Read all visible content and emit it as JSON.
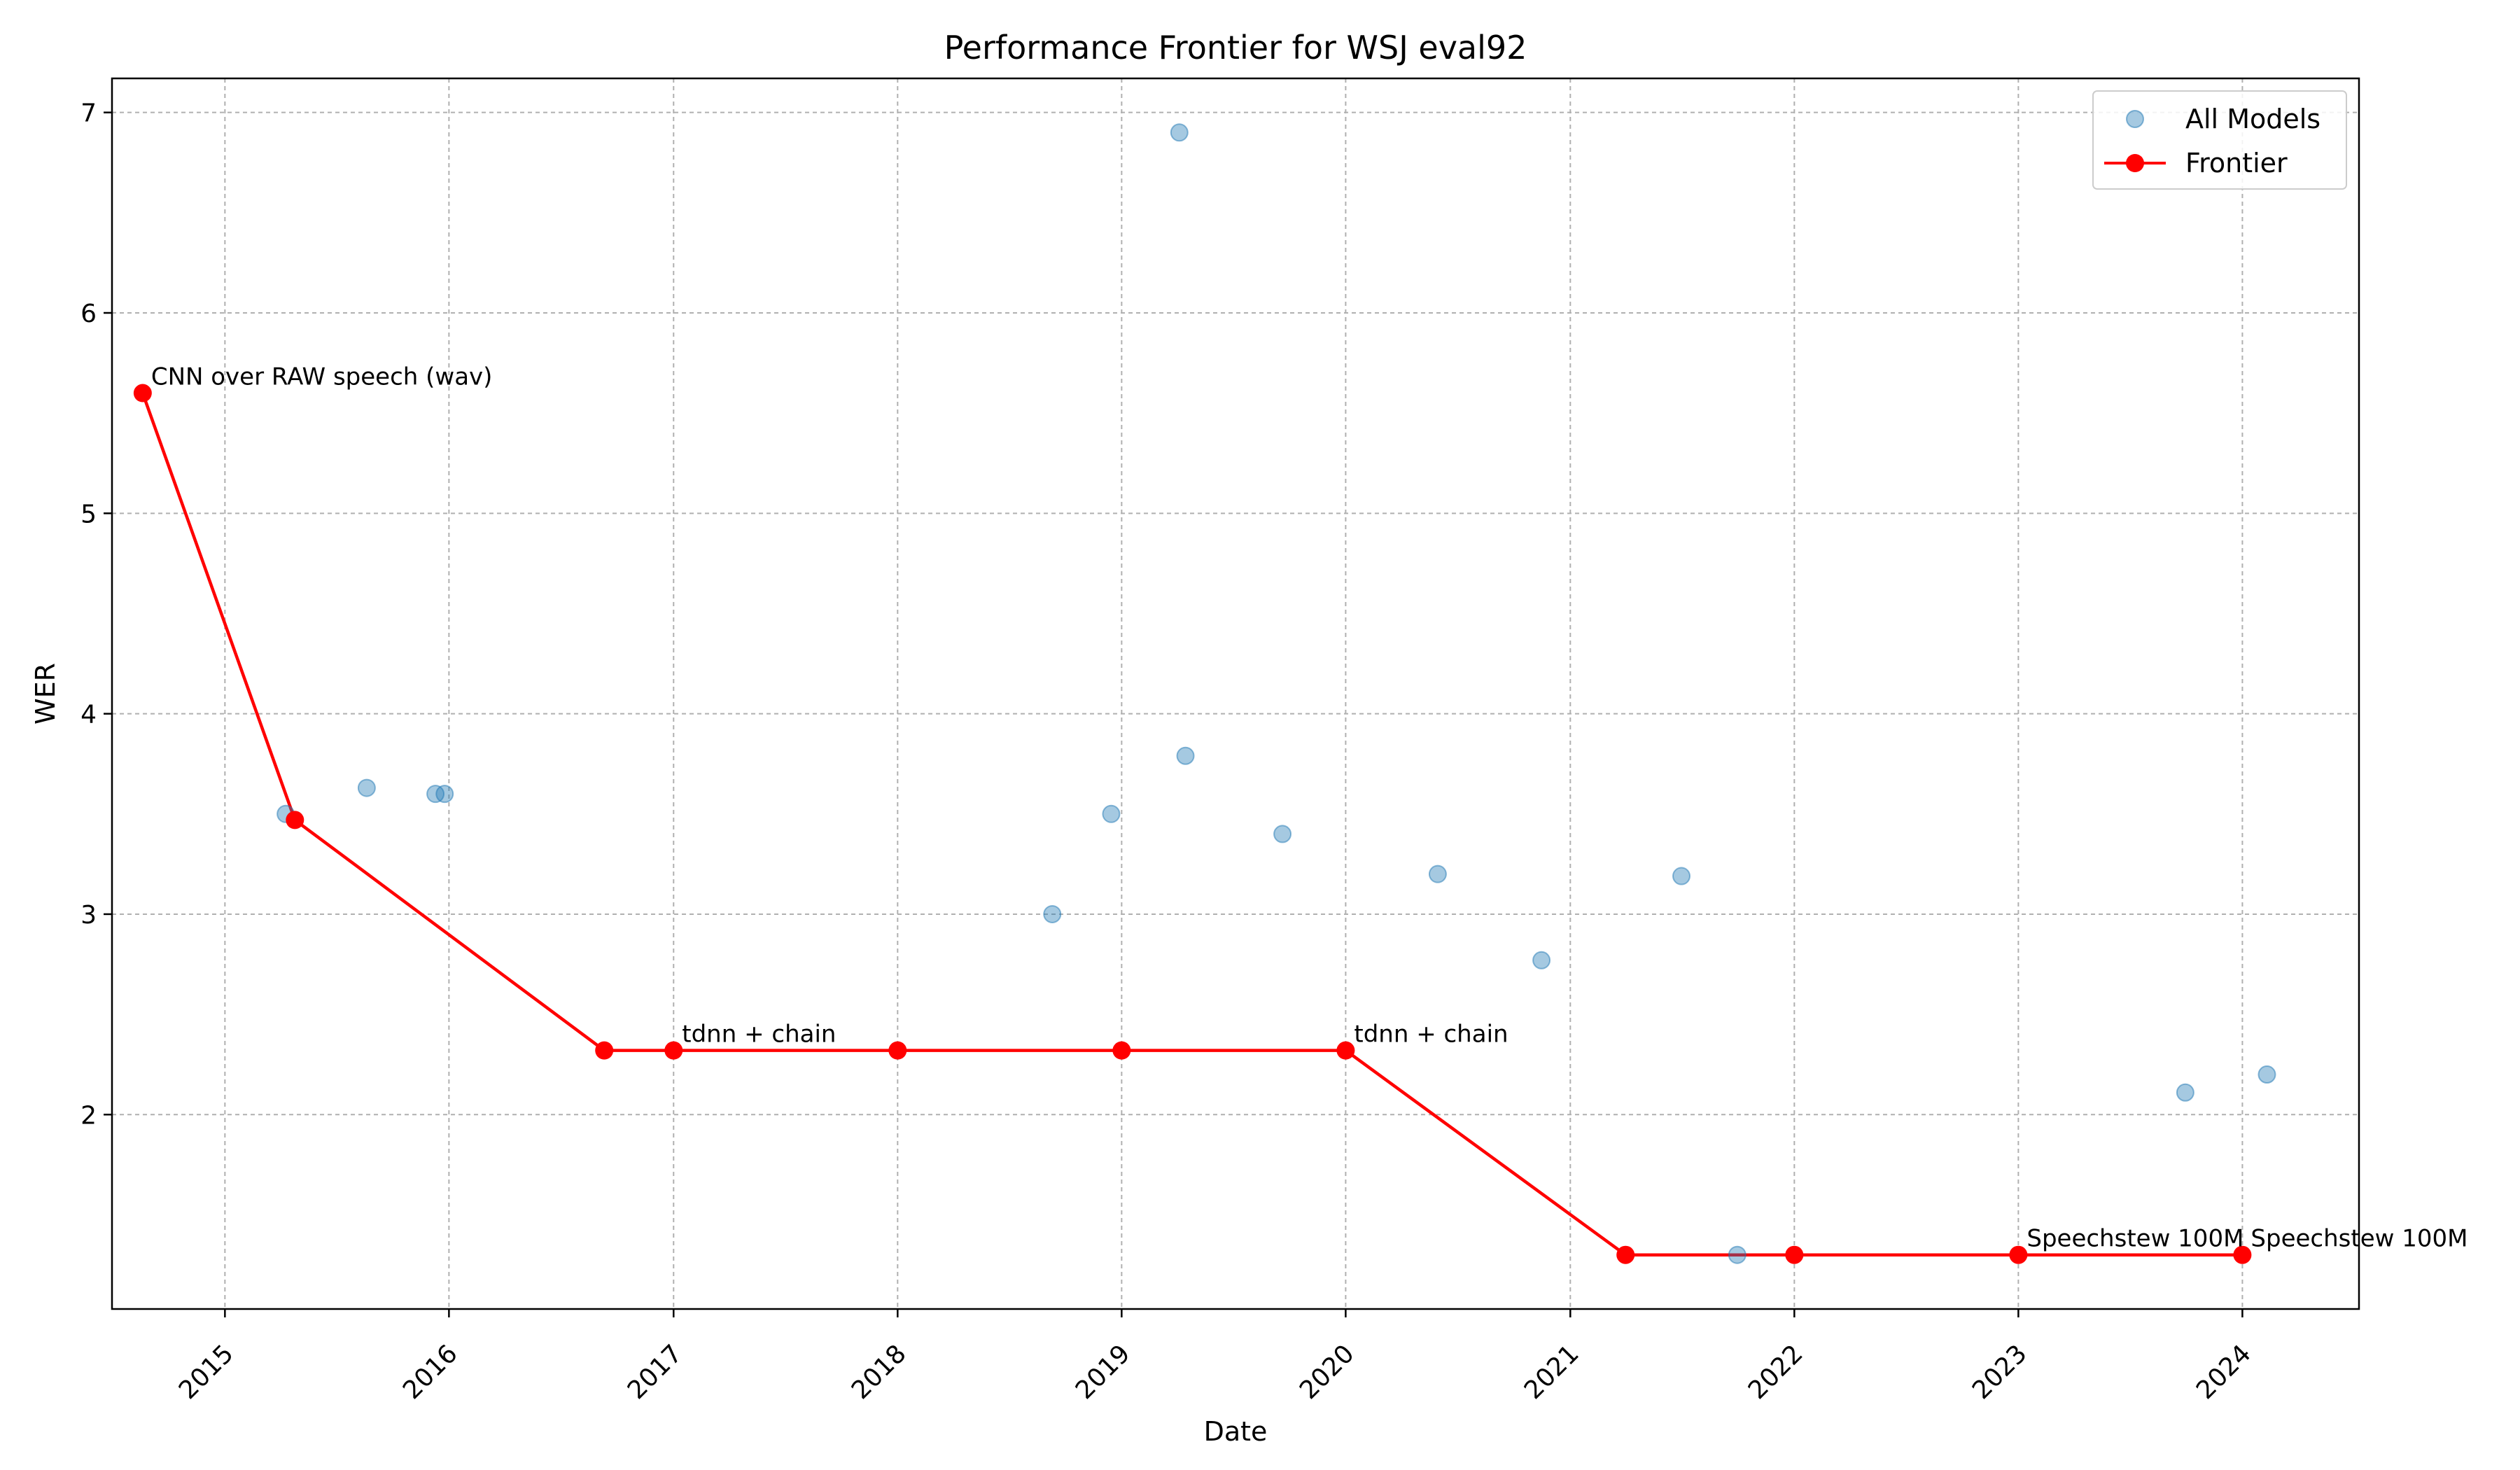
{
  "chart_data": {
    "type": "scatter",
    "title": "Performance Frontier for WSJ eval92",
    "xlabel": "Date",
    "ylabel": "WER",
    "xlim": [
      "2014-07-01",
      "2024-07-09"
    ],
    "ylim": [
      1.03,
      7.17
    ],
    "xticks": [
      "2015",
      "2016",
      "2017",
      "2018",
      "2019",
      "2020",
      "2021",
      "2022",
      "2023",
      "2024"
    ],
    "yticks": [
      2,
      3,
      4,
      5,
      6,
      7
    ],
    "grid": true,
    "legend_position": "top-right",
    "series": [
      {
        "name": "All Models",
        "type": "scatter",
        "color": "#1f77b4",
        "points": [
          {
            "x": "2015-04-10",
            "y": 3.5
          },
          {
            "x": "2015-08-20",
            "y": 3.63
          },
          {
            "x": "2015-12-10",
            "y": 3.6
          },
          {
            "x": "2015-12-25",
            "y": 3.6
          },
          {
            "x": "2018-09-10",
            "y": 3.0
          },
          {
            "x": "2018-12-15",
            "y": 3.5
          },
          {
            "x": "2019-04-05",
            "y": 6.9
          },
          {
            "x": "2019-04-15",
            "y": 3.79
          },
          {
            "x": "2019-09-20",
            "y": 3.4
          },
          {
            "x": "2020-05-30",
            "y": 3.2
          },
          {
            "x": "2020-11-15",
            "y": 2.77
          },
          {
            "x": "2021-07-01",
            "y": 3.19
          },
          {
            "x": "2021-09-30",
            "y": 1.3
          },
          {
            "x": "2023-09-30",
            "y": 2.11
          },
          {
            "x": "2024-02-10",
            "y": 2.2
          }
        ]
      },
      {
        "name": "Frontier",
        "type": "line",
        "color": "#ff0000",
        "points": [
          {
            "x": "2014-08-20",
            "y": 5.6
          },
          {
            "x": "2015-04-25",
            "y": 3.47
          },
          {
            "x": "2016-09-10",
            "y": 2.32
          },
          {
            "x": "2017-01-01",
            "y": 2.32
          },
          {
            "x": "2018-01-01",
            "y": 2.32
          },
          {
            "x": "2019-01-01",
            "y": 2.32
          },
          {
            "x": "2020-01-01",
            "y": 2.32
          },
          {
            "x": "2021-04-01",
            "y": 1.3
          },
          {
            "x": "2022-01-01",
            "y": 1.3
          },
          {
            "x": "2023-01-01",
            "y": 1.3
          },
          {
            "x": "2024-01-01",
            "y": 1.3
          }
        ]
      }
    ],
    "annotations": [
      {
        "text": "CNN over RAW speech (wav)",
        "x": "2014-08-20",
        "y": 5.6
      },
      {
        "text": "tdnn + chain",
        "x": "2017-01-01",
        "y": 2.32
      },
      {
        "text": "tdnn + chain",
        "x": "2020-01-01",
        "y": 2.32
      },
      {
        "text": "Speechstew 100M",
        "x": "2023-01-01",
        "y": 1.3
      },
      {
        "text": "Speechstew 100M",
        "x": "2024-01-01",
        "y": 1.3
      }
    ]
  }
}
